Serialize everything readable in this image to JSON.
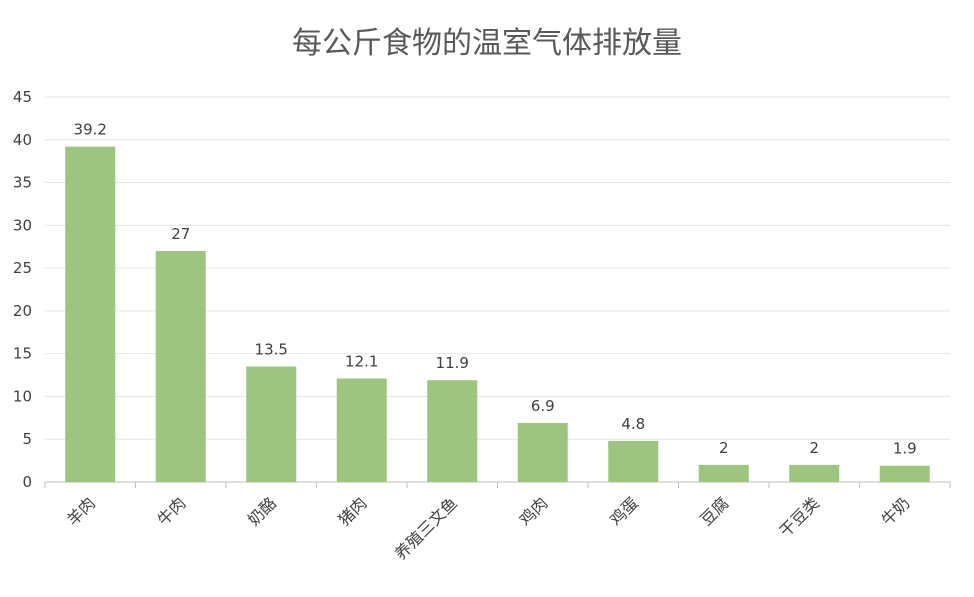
{
  "chart_data": {
    "type": "bar",
    "title": "每公斤食物的温室气体排放量",
    "xlabel": "",
    "ylabel": "",
    "categories": [
      "羊肉",
      "牛肉",
      "奶酪",
      "猪肉",
      "养殖三文鱼",
      "鸡肉",
      "鸡蛋",
      "豆腐",
      "干豆类",
      "牛奶"
    ],
    "values": [
      39.2,
      27,
      13.5,
      12.1,
      11.9,
      6.9,
      4.8,
      2,
      2,
      1.9
    ],
    "data_labels": [
      "39.2",
      "27",
      "13.5",
      "12.1",
      "11.9",
      "6.9",
      "4.8",
      "2",
      "2",
      "1.9"
    ],
    "ylim": [
      0,
      45
    ],
    "yticks": [
      0,
      5,
      10,
      15,
      20,
      25,
      30,
      35,
      40,
      45
    ],
    "grid": true,
    "legend": "none",
    "bar_color": "#9DC57F",
    "grid_color": "#E6E6E6",
    "text_color": "#404040"
  }
}
